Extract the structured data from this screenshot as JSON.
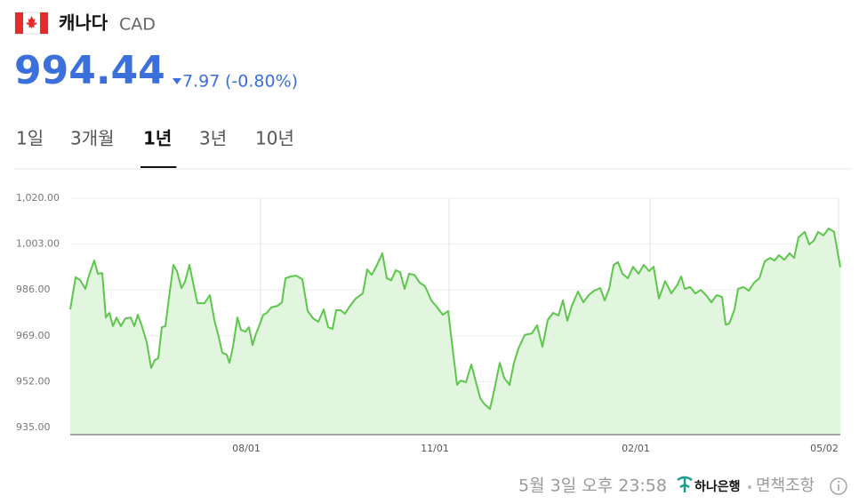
{
  "header": {
    "name": "캐나다",
    "code": "CAD",
    "price": "994.44",
    "change": "7.97",
    "change_pct": "(-0.80%)"
  },
  "tabs": [
    "1일",
    "3개월",
    "1년",
    "3년",
    "10년"
  ],
  "active_tab": 2,
  "footer": {
    "timestamp": "5월 3일 오후 23:58",
    "bank": "하나은행",
    "disclaimer": "면책조항"
  },
  "chart_data": {
    "type": "line",
    "color": "#5cc74a",
    "area_color": "#e1f5df",
    "x": [
      0,
      6,
      11,
      17,
      21,
      27,
      31,
      36,
      40,
      44,
      48,
      52,
      57,
      62,
      68,
      72,
      76,
      81,
      86,
      91,
      95,
      99,
      103,
      107,
      111,
      116,
      120,
      125,
      129,
      134,
      139,
      143,
      151,
      157,
      162,
      167,
      171,
      176,
      179,
      183,
      188,
      192,
      197,
      201,
      205,
      209,
      213,
      217,
      221,
      226,
      233,
      238,
      242,
      248,
      254,
      261,
      267,
      273,
      279,
      285,
      290,
      295,
      299,
      304,
      309,
      314,
      321,
      329,
      334,
      339,
      344,
      351,
      356,
      361,
      366,
      371,
      376,
      381,
      387,
      393,
      399,
      406,
      412,
      419,
      425,
      430,
      435,
      439,
      445,
      451,
      455,
      461,
      466,
      472,
      477,
      483,
      488,
      494,
      499,
      504,
      511,
      519,
      525,
      531,
      537,
      543,
      549,
      554,
      559,
      564,
      571,
      577,
      583,
      589,
      596,
      601,
      606,
      611,
      616,
      621,
      627,
      633,
      639,
      645,
      651,
      656,
      662,
      669,
      676,
      683,
      687,
      691,
      697,
      703,
      709,
      715,
      721,
      727,
      733,
      737,
      741,
      747,
      751,
      757,
      763,
      769,
      775,
      781,
      787,
      792,
      797,
      803,
      809,
      814,
      819,
      826,
      831,
      836,
      841,
      847,
      853,
      859,
      866
    ],
    "values": [
      978.8,
      990.7,
      989.7,
      986.4,
      991.3,
      996.9,
      992,
      992.3,
      975.8,
      977.5,
      972.6,
      975.8,
      972.6,
      975.5,
      975.8,
      972.6,
      976.8,
      972.2,
      966.6,
      957.1,
      960,
      960.7,
      972.2,
      972.6,
      983.1,
      995.3,
      993,
      986.7,
      989,
      995.3,
      987.4,
      981.1,
      981.1,
      984.1,
      974.9,
      968.6,
      962.7,
      962,
      959,
      964.9,
      975.8,
      971.2,
      970.5,
      972.2,
      965.6,
      969.9,
      973.2,
      976.8,
      977.5,
      979.5,
      980.1,
      981.4,
      990.3,
      991,
      991.3,
      990,
      978.2,
      975.5,
      974.2,
      978.8,
      972.2,
      971.6,
      978.5,
      978.5,
      977.2,
      979.8,
      982.8,
      984.7,
      993.6,
      991.6,
      994.6,
      999.6,
      990.3,
      989.6,
      993.3,
      992.6,
      986.4,
      992,
      991.6,
      988.7,
      987.4,
      982.1,
      979.8,
      976.8,
      978.2,
      964.3,
      950.8,
      952.4,
      951.8,
      958.4,
      953.4,
      945.9,
      943.6,
      941.9,
      949.2,
      959,
      953.4,
      950.8,
      959,
      964.3,
      969.3,
      969.9,
      972.9,
      964.9,
      974.9,
      977.5,
      976.5,
      982.1,
      974.6,
      980.1,
      985.4,
      981.4,
      984.1,
      985.7,
      986.7,
      982.1,
      986.4,
      995.3,
      996.3,
      992,
      990.3,
      994.6,
      992,
      995.3,
      993,
      994.6,
      982.8,
      989.3,
      984.7,
      988,
      991,
      986.4,
      987.1,
      984.7,
      986,
      984.1,
      981.4,
      984.1,
      983.4,
      973.2,
      973.5,
      978.8,
      986.4,
      987.1,
      985.7,
      988.7,
      990.3,
      996.6,
      997.9,
      996.9,
      998.9,
      997.2,
      999.6,
      997.9,
      1005.5,
      1007.5,
      1002.9,
      1004.2,
      1007.5,
      1006.2,
      1008.8,
      1007.5,
      994.4
    ],
    "xlim": [
      0,
      866
    ],
    "xticks": [
      {
        "value": 214,
        "label": "08/01"
      },
      {
        "value": 426,
        "label": "11/01"
      },
      {
        "value": 652,
        "label": "02/01"
      },
      {
        "value": 864,
        "label": "05/02"
      }
    ],
    "ylim": [
      935,
      1020
    ],
    "yticks": [
      {
        "value": 1020,
        "label": "1,020.00"
      },
      {
        "value": 1003,
        "label": "1,003.00"
      },
      {
        "value": 986,
        "label": "986.00"
      },
      {
        "value": 969,
        "label": "969.00"
      },
      {
        "value": 952,
        "label": "952.00"
      },
      {
        "value": 935,
        "label": "935.00"
      }
    ],
    "grid": true
  }
}
